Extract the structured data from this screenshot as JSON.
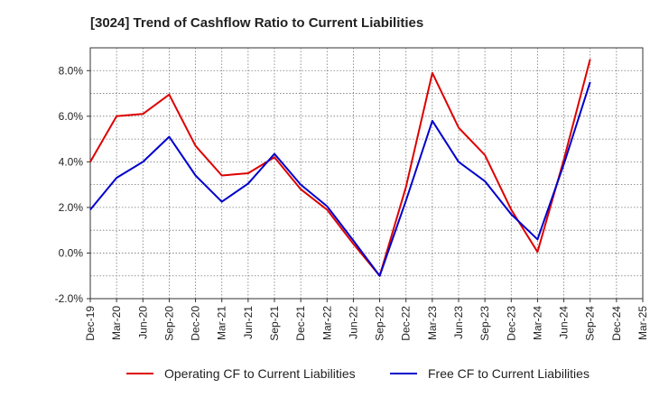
{
  "chart_data": {
    "type": "line",
    "title": "[3024]  Trend of Cashflow Ratio to Current Liabilities",
    "categories": [
      "Dec-19",
      "Mar-20",
      "Jun-20",
      "Sep-20",
      "Dec-20",
      "Mar-21",
      "Jun-21",
      "Sep-21",
      "Dec-21",
      "Mar-22",
      "Jun-22",
      "Sep-22",
      "Dec-22",
      "Mar-23",
      "Jun-23",
      "Sep-23",
      "Dec-23",
      "Mar-24",
      "Jun-24",
      "Sep-24",
      "Dec-24",
      "Mar-25"
    ],
    "ylim": [
      -2.0,
      9.0
    ],
    "yticks": [
      -2.0,
      0.0,
      2.0,
      4.0,
      6.0,
      8.0
    ],
    "ytick_labels": [
      "-2.0%",
      "0.0%",
      "2.0%",
      "4.0%",
      "6.0%",
      "8.0%"
    ],
    "grid": true,
    "legend_position": "bottom",
    "series": [
      {
        "name": "Operating CF to Current Liabilities",
        "color": "#dd0000",
        "values": [
          4.0,
          6.0,
          6.1,
          6.95,
          4.7,
          3.4,
          3.5,
          4.2,
          2.8,
          1.9,
          0.4,
          -1.0,
          2.9,
          7.9,
          5.5,
          4.3,
          1.9,
          0.05,
          4.1,
          8.5,
          null,
          null
        ]
      },
      {
        "name": "Free CF to Current Liabilities",
        "color": "#0000cc",
        "values": [
          1.9,
          3.3,
          4.0,
          5.1,
          3.4,
          2.25,
          3.05,
          4.35,
          3.0,
          2.05,
          0.55,
          -1.0,
          2.3,
          5.8,
          4.0,
          3.15,
          1.7,
          0.6,
          3.9,
          7.5,
          null,
          null
        ]
      }
    ]
  }
}
